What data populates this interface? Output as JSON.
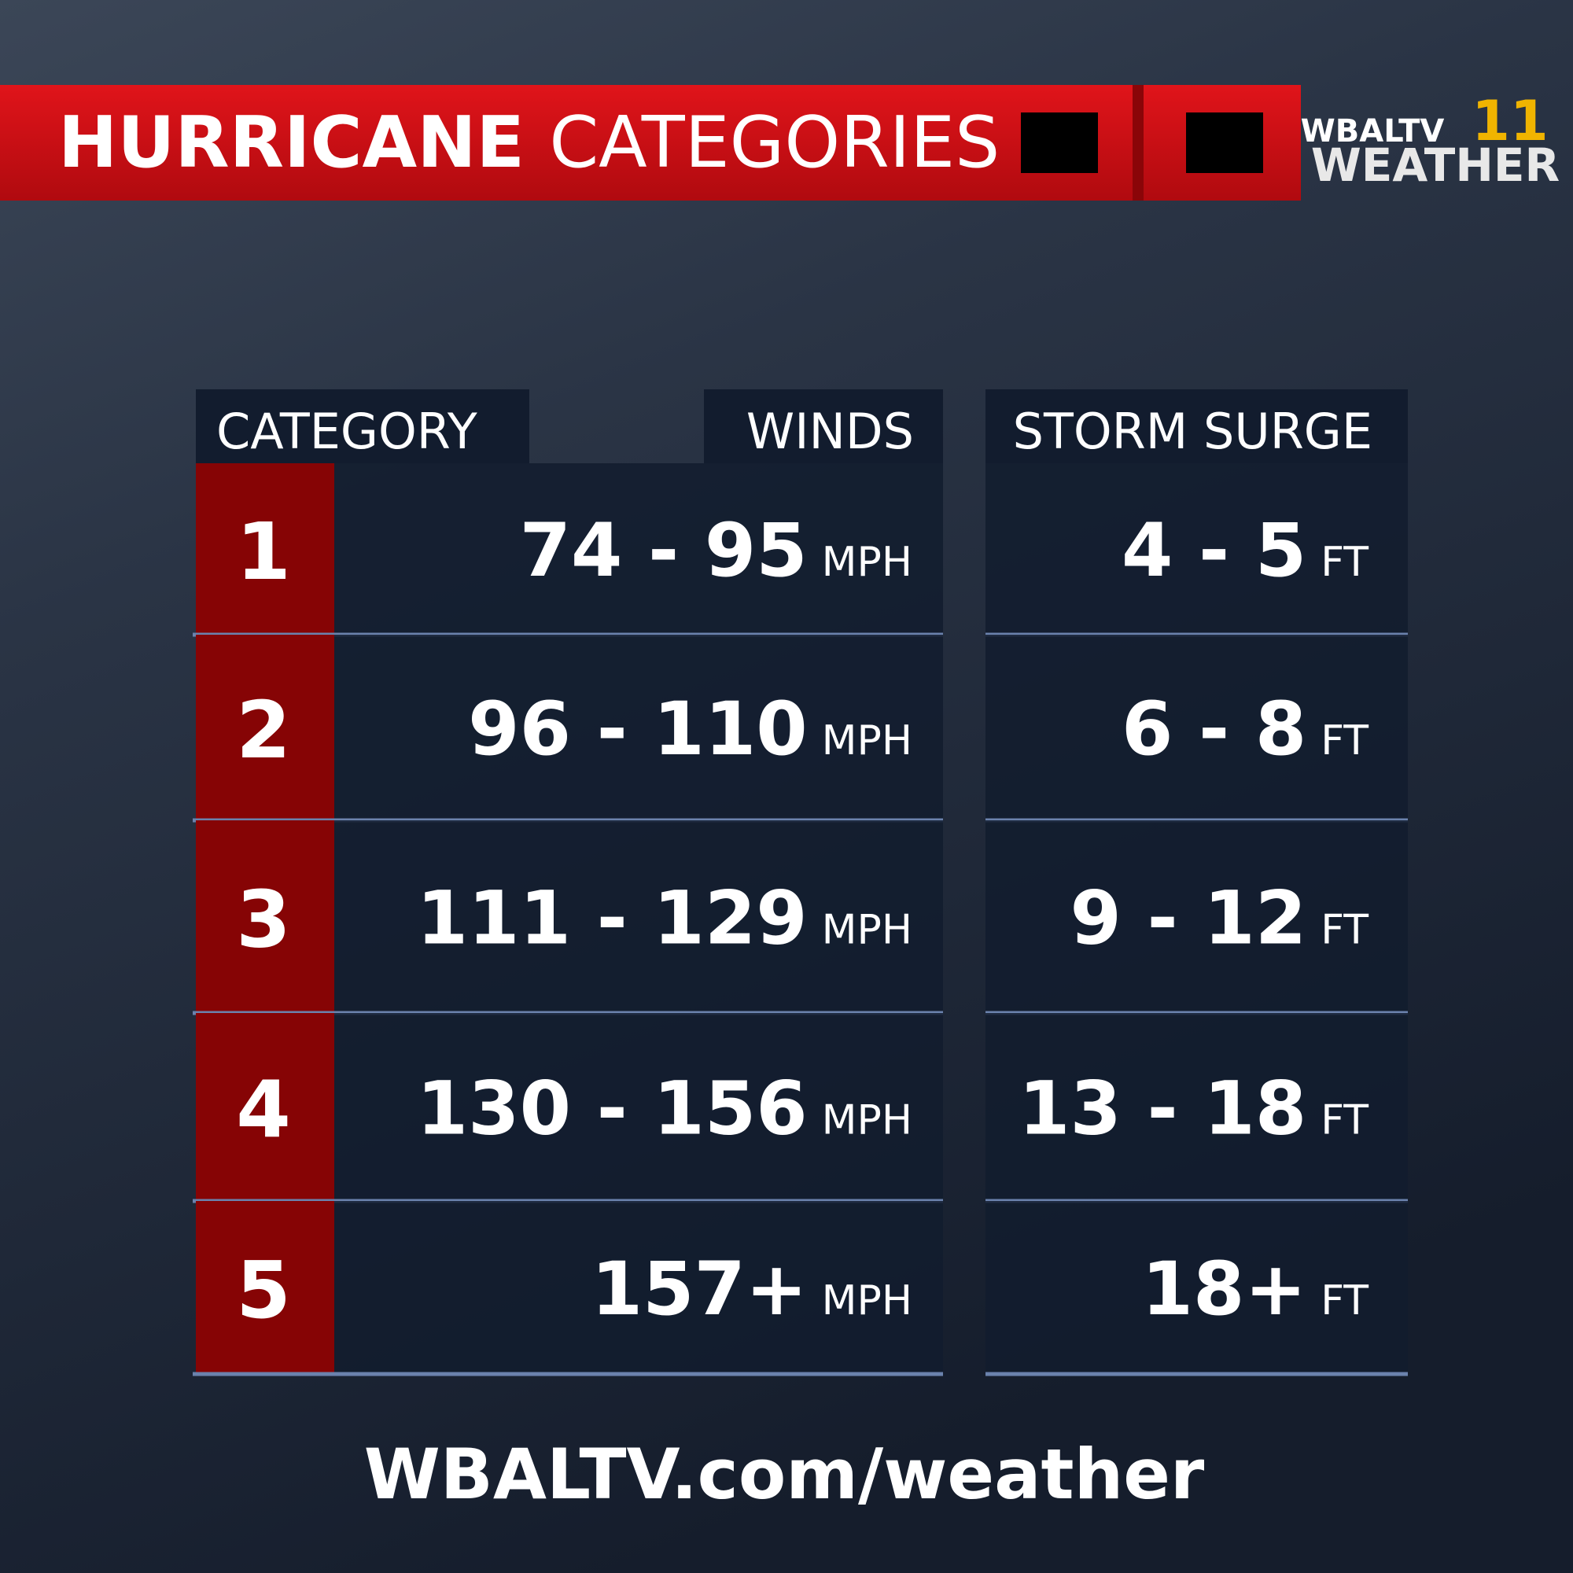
{
  "header": {
    "title_bold": "HURRICANE",
    "title_rest": "CATEGORIES"
  },
  "logo": {
    "top": "WBALTV",
    "number": "11",
    "bottom": "WEATHER"
  },
  "table": {
    "headers": {
      "category": "CATEGORY",
      "winds": "WINDS",
      "surge": "STORM SURGE"
    },
    "rows": [
      {
        "category": "1",
        "winds": "74 - 95",
        "winds_unit": "MPH",
        "surge": "4 - 5",
        "surge_unit": "FT"
      },
      {
        "category": "2",
        "winds": "96 - 110",
        "winds_unit": "MPH",
        "surge": "6 - 8",
        "surge_unit": "FT"
      },
      {
        "category": "3",
        "winds": "111 - 129",
        "winds_unit": "MPH",
        "surge": "9 - 12",
        "surge_unit": "FT"
      },
      {
        "category": "4",
        "winds": "130 - 156",
        "winds_unit": "MPH",
        "surge": "13 - 18",
        "surge_unit": "FT"
      },
      {
        "category": "5",
        "winds": "157+",
        "winds_unit": "MPH",
        "surge": "18+",
        "surge_unit": "FT"
      }
    ]
  },
  "footer": "WBALTV.com/weather"
}
